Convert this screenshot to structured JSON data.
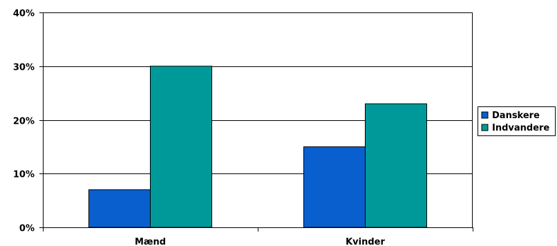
{
  "chart_data": {
    "type": "bar",
    "title": "",
    "xlabel": "",
    "ylabel": "",
    "categories": [
      "Mænd",
      "Kvinder"
    ],
    "series": [
      {
        "name": "Danskere",
        "values": [
          7,
          15
        ],
        "color": "#0A5FCE"
      },
      {
        "name": "Indvandere",
        "values": [
          30,
          23
        ],
        "color": "#009999"
      }
    ],
    "ylim": [
      0,
      40
    ],
    "yticks": [
      0,
      10,
      20,
      30,
      40
    ],
    "ytick_labels": [
      "0%",
      "10%",
      "20%",
      "30%",
      "40%"
    ],
    "grid": true,
    "legend": "right"
  }
}
